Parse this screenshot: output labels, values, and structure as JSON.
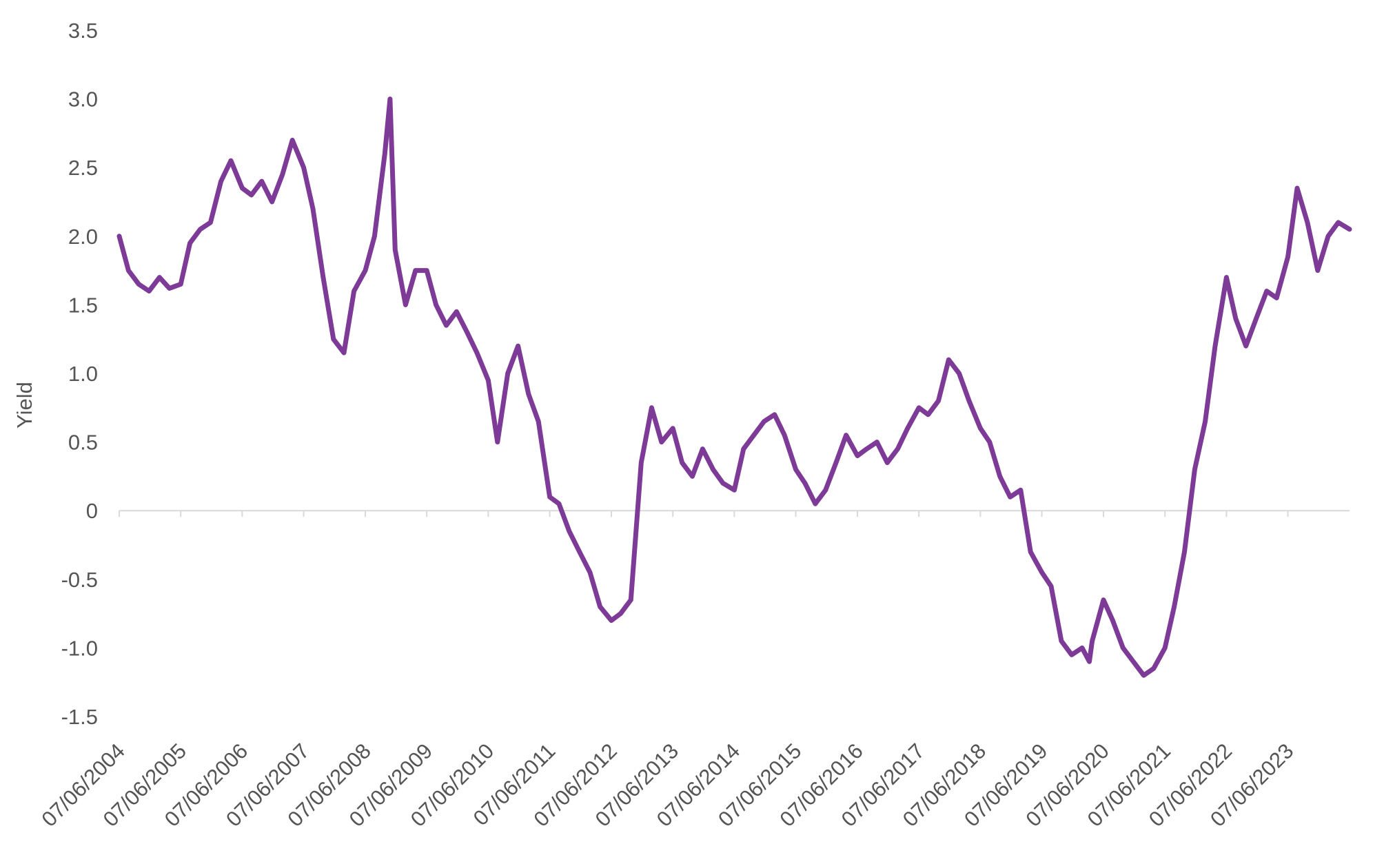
{
  "chart_data": {
    "type": "line",
    "title": "",
    "xlabel": "",
    "ylabel": "Yield",
    "ylim": [
      -1.5,
      3.5
    ],
    "yticks": [
      -1.5,
      -1.0,
      -0.5,
      0,
      0.5,
      1.0,
      1.5,
      2.0,
      2.5,
      3.0,
      3.5
    ],
    "ytick_labels": [
      "-1.5",
      "-1.0",
      "-0.5",
      "0",
      "0.5",
      "1.0",
      "1.5",
      "2.0",
      "2.5",
      "3.0",
      "3.5"
    ],
    "xlim": [
      "2004-06-07",
      "2024-06-07"
    ],
    "xtick_labels": [
      "07/06/2004",
      "07/06/2005",
      "07/06/2006",
      "07/06/2007",
      "07/06/2008",
      "07/06/2009",
      "07/06/2010",
      "07/06/2011",
      "07/06/2012",
      "07/06/2013",
      "07/06/2014",
      "07/06/2015",
      "07/06/2016",
      "07/06/2017",
      "07/06/2018",
      "07/06/2019",
      "07/06/2020",
      "07/06/2021",
      "07/06/2022",
      "07/06/2023"
    ],
    "grid": false,
    "legend": "none",
    "colors": {
      "line": "#7d3a96",
      "axis": "#d9d9d9",
      "text": "#555555"
    },
    "series": [
      {
        "x": [
          "2004-06-07",
          "2004-08-01",
          "2004-10-01",
          "2004-12-01",
          "2005-02-01",
          "2005-04-01",
          "2005-06-07",
          "2005-08-01",
          "2005-10-01",
          "2005-12-01",
          "2006-02-01",
          "2006-04-01",
          "2006-06-07",
          "2006-08-01",
          "2006-10-01",
          "2006-12-01",
          "2007-02-01",
          "2007-04-01",
          "2007-06-07",
          "2007-08-01",
          "2007-10-01",
          "2007-12-01",
          "2008-02-01",
          "2008-04-01",
          "2008-06-07",
          "2008-08-01",
          "2008-10-01",
          "2008-11-01",
          "2008-12-01",
          "2009-02-01",
          "2009-04-01",
          "2009-06-07",
          "2009-08-01",
          "2009-10-01",
          "2009-12-01",
          "2010-02-01",
          "2010-04-01",
          "2010-06-07",
          "2010-08-01",
          "2010-10-01",
          "2010-12-01",
          "2011-02-01",
          "2011-04-01",
          "2011-06-07",
          "2011-08-01",
          "2011-10-01",
          "2011-12-01",
          "2012-02-01",
          "2012-04-01",
          "2012-06-07",
          "2012-08-01",
          "2012-10-01",
          "2012-12-01",
          "2013-02-01",
          "2013-04-01",
          "2013-06-07",
          "2013-08-01",
          "2013-10-01",
          "2013-12-01",
          "2014-02-01",
          "2014-04-01",
          "2014-06-07",
          "2014-08-01",
          "2014-10-01",
          "2014-12-01",
          "2015-02-01",
          "2015-04-01",
          "2015-06-07",
          "2015-08-01",
          "2015-10-01",
          "2015-12-01",
          "2016-02-01",
          "2016-04-01",
          "2016-06-07",
          "2016-08-01",
          "2016-10-01",
          "2016-12-01",
          "2017-02-01",
          "2017-04-01",
          "2017-06-07",
          "2017-08-01",
          "2017-10-01",
          "2017-12-01",
          "2018-02-01",
          "2018-04-01",
          "2018-06-07",
          "2018-08-01",
          "2018-10-01",
          "2018-12-01",
          "2019-02-01",
          "2019-04-01",
          "2019-06-07",
          "2019-08-01",
          "2019-10-01",
          "2019-12-01",
          "2020-02-01",
          "2020-03-15",
          "2020-04-01",
          "2020-06-07",
          "2020-08-01",
          "2020-10-01",
          "2020-12-01",
          "2021-02-01",
          "2021-04-01",
          "2021-06-07",
          "2021-08-01",
          "2021-10-01",
          "2021-12-01",
          "2022-02-01",
          "2022-04-01",
          "2022-06-07",
          "2022-08-01",
          "2022-10-01",
          "2022-12-01",
          "2023-02-01",
          "2023-04-01",
          "2023-06-07",
          "2023-08-01",
          "2023-10-01",
          "2023-12-01",
          "2024-02-01",
          "2024-04-01",
          "2024-06-07"
        ],
        "values": [
          2.0,
          1.75,
          1.65,
          1.6,
          1.7,
          1.62,
          1.65,
          1.95,
          2.05,
          2.1,
          2.4,
          2.55,
          2.35,
          2.3,
          2.4,
          2.25,
          2.45,
          2.7,
          2.5,
          2.2,
          1.7,
          1.25,
          1.15,
          1.6,
          1.75,
          2.0,
          2.6,
          3.0,
          1.9,
          1.5,
          1.75,
          1.75,
          1.5,
          1.35,
          1.45,
          1.3,
          1.15,
          0.95,
          0.5,
          1.0,
          1.2,
          0.85,
          0.65,
          0.1,
          0.05,
          -0.15,
          -0.3,
          -0.45,
          -0.7,
          -0.8,
          -0.75,
          -0.65,
          0.35,
          0.75,
          0.5,
          0.6,
          0.35,
          0.25,
          0.45,
          0.3,
          0.2,
          0.15,
          0.45,
          0.55,
          0.65,
          0.7,
          0.55,
          0.3,
          0.2,
          0.05,
          0.15,
          0.35,
          0.55,
          0.4,
          0.45,
          0.5,
          0.35,
          0.45,
          0.6,
          0.75,
          0.7,
          0.8,
          1.1,
          1.0,
          0.8,
          0.6,
          0.5,
          0.25,
          0.1,
          0.15,
          -0.3,
          -0.45,
          -0.55,
          -0.95,
          -1.05,
          -1.0,
          -1.1,
          -0.95,
          -0.65,
          -0.8,
          -1.0,
          -1.1,
          -1.2,
          -1.15,
          -1.0,
          -0.7,
          -0.3,
          0.3,
          0.65,
          1.2,
          1.7,
          1.4,
          1.2,
          1.4,
          1.6,
          1.55,
          1.85,
          2.35,
          2.1,
          1.75,
          2.0,
          2.1,
          2.05
        ]
      }
    ]
  }
}
